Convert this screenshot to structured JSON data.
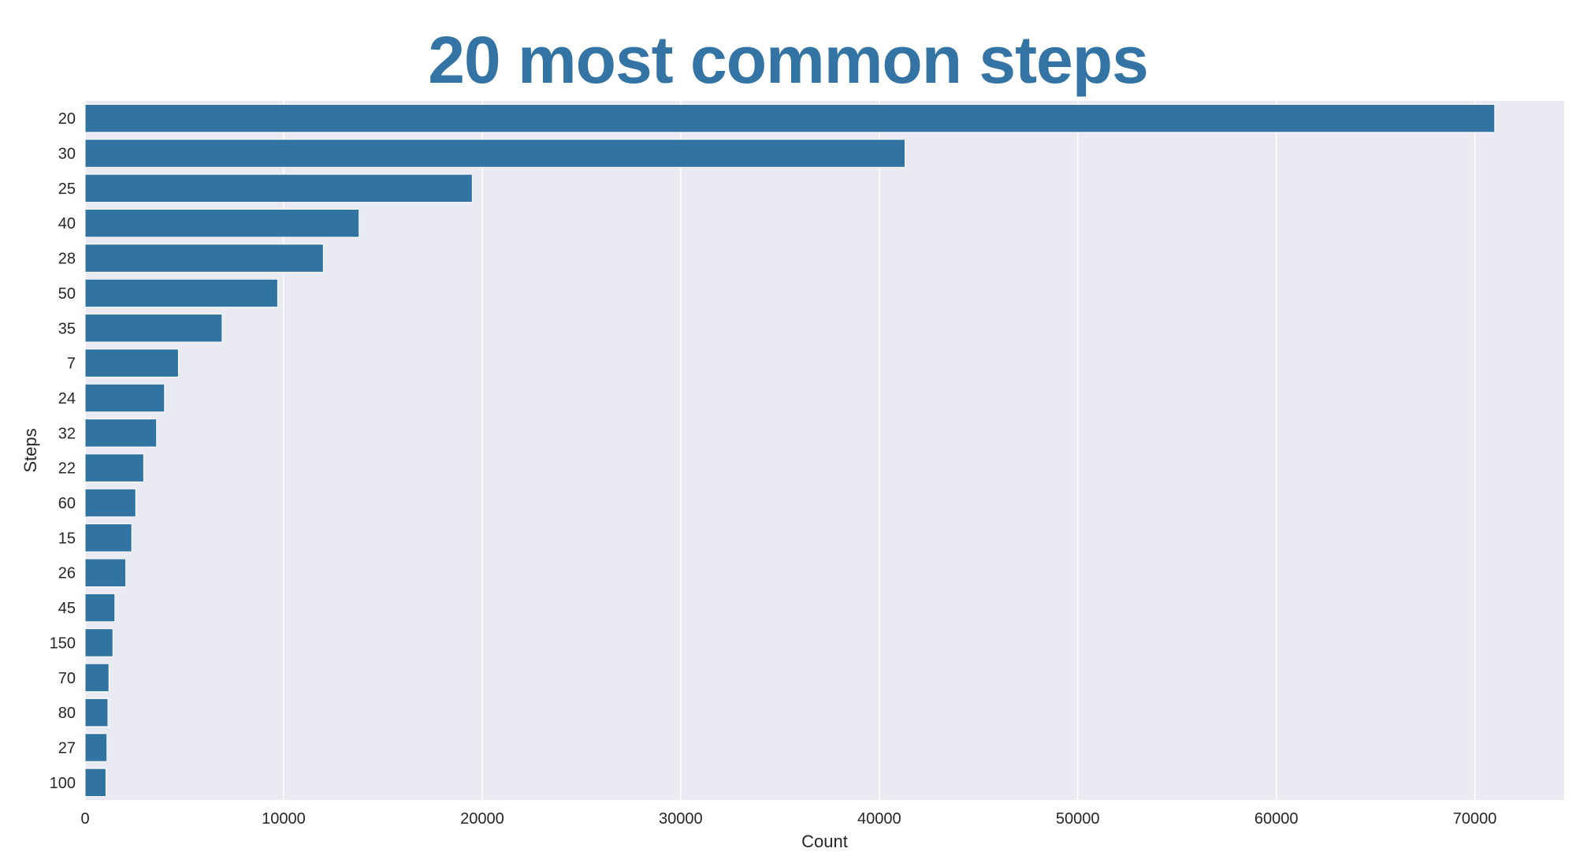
{
  "chart_data": {
    "type": "bar",
    "orientation": "horizontal",
    "title": "20 most common steps",
    "xlabel": "Count",
    "ylabel": "Steps",
    "categories": [
      "20",
      "30",
      "25",
      "40",
      "28",
      "50",
      "35",
      "7",
      "24",
      "32",
      "22",
      "60",
      "15",
      "26",
      "45",
      "150",
      "70",
      "80",
      "27",
      "100"
    ],
    "values": [
      71000,
      41300,
      19500,
      13800,
      12000,
      9700,
      6900,
      4700,
      4000,
      3600,
      2950,
      2550,
      2350,
      2050,
      1500,
      1400,
      1200,
      1150,
      1100,
      1050
    ],
    "xlim": [
      0,
      74500
    ],
    "xticks": [
      0,
      10000,
      20000,
      30000,
      40000,
      50000,
      60000,
      70000
    ],
    "xtick_labels": [
      "0",
      "10000",
      "20000",
      "30000",
      "40000",
      "50000",
      "60000",
      "70000"
    ],
    "grid": true,
    "colors": {
      "bar": "#3274a1",
      "background": "#eaeaf2",
      "grid": "#ffffff",
      "title": "#3374a5"
    }
  }
}
